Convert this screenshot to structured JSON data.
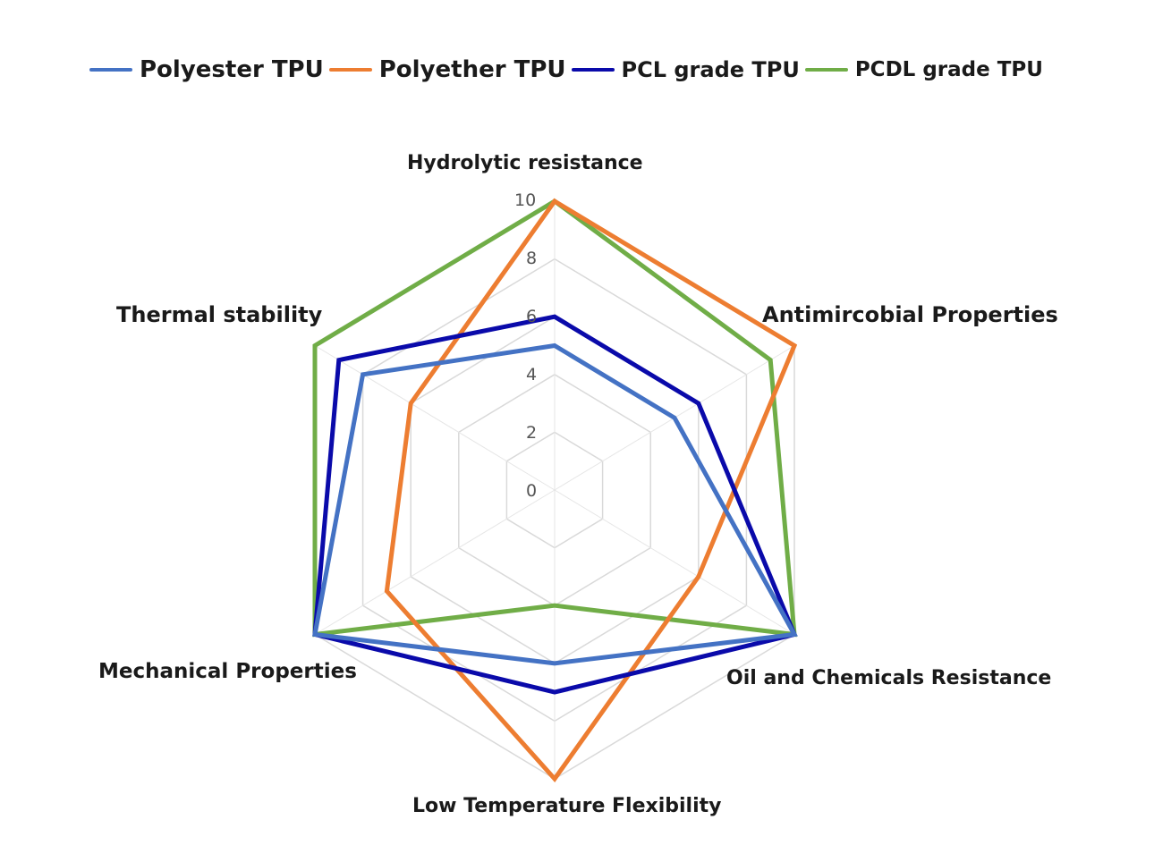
{
  "legend": [
    {
      "label": "Polyester TPU",
      "color": "#4472C4",
      "font_size": 26
    },
    {
      "label": "Polyether TPU",
      "color": "#ED7D31",
      "font_size": 26
    },
    {
      "label": "PCL grade TPU",
      "color": "#0A0AAA",
      "font_size": 24
    },
    {
      "label": "PCDL grade TPU",
      "color": "#70AD47",
      "font_size": 23
    }
  ],
  "axes": {
    "hydrolytic": "Hydrolytic resistance",
    "antimicrobial": "Antimircobial Properties",
    "oil": "Oil and Chemicals Resistance",
    "lowtemp": "Low Temperature Flexibility",
    "mechanical": "Mechanical Properties",
    "thermal": "Thermal stability"
  },
  "ticks": [
    "0",
    "2",
    "4",
    "6",
    "8",
    "10"
  ],
  "chart_data": {
    "type": "radar",
    "title": "",
    "categories": [
      "Hydrolytic resistance",
      "Antimircobial Properties",
      "Oil and Chemicals Resistance",
      "Low Temperature Flexibility",
      "Mechanical Properties",
      "Thermal stability"
    ],
    "series": [
      {
        "name": "Polyester TPU",
        "color": "#4472C4",
        "values": [
          5,
          5,
          10,
          6,
          10,
          8
        ]
      },
      {
        "name": "Polyether TPU",
        "color": "#ED7D31",
        "values": [
          10,
          10,
          6,
          10,
          7,
          6
        ]
      },
      {
        "name": "PCL grade TPU",
        "color": "#0A0AAA",
        "values": [
          6,
          6,
          10,
          7,
          10,
          9
        ]
      },
      {
        "name": "PCDL grade TPU",
        "color": "#70AD47",
        "values": [
          10,
          9,
          10,
          4,
          10,
          10
        ]
      }
    ],
    "rlim": [
      0,
      10
    ],
    "rticks": [
      0,
      2,
      4,
      6,
      8,
      10
    ],
    "grid": true,
    "legend_position": "top"
  }
}
